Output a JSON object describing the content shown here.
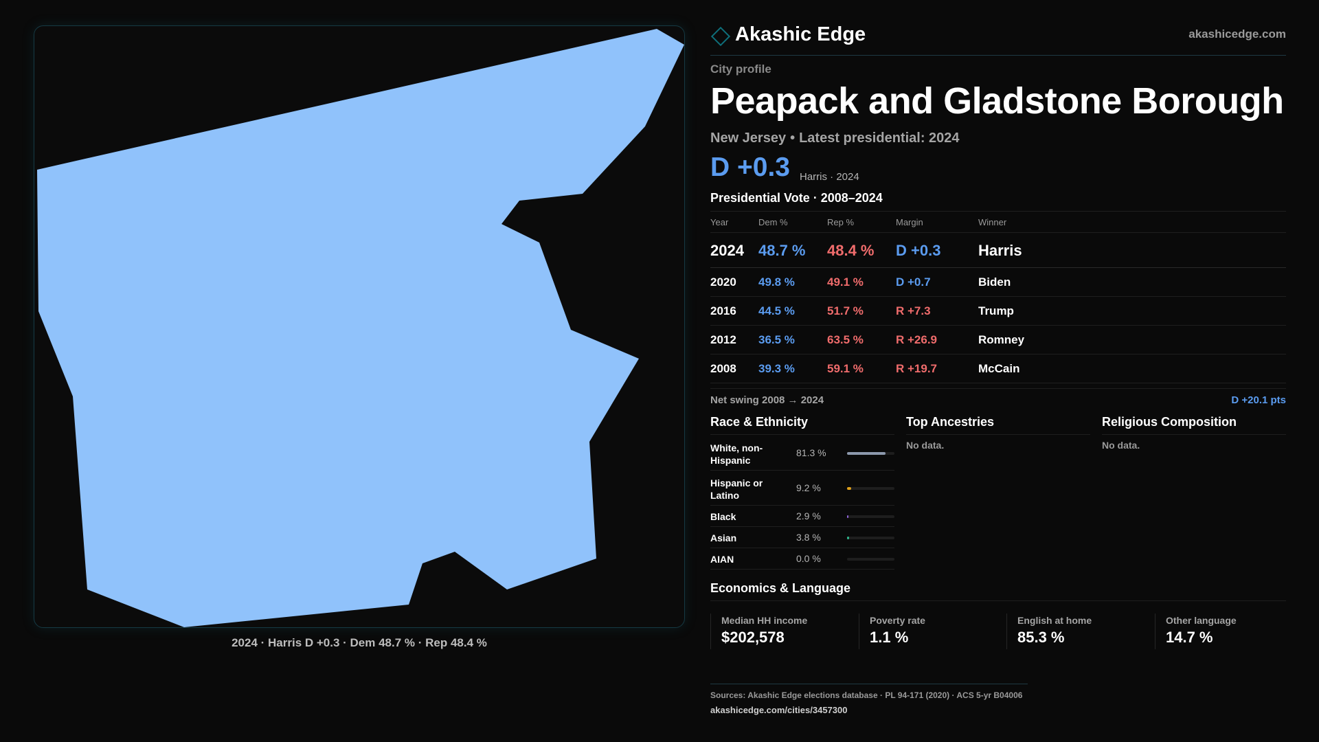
{
  "brand": {
    "name": "Akashic Edge",
    "url": "akashicedge.com",
    "accent": "#0e6f7a"
  },
  "profile": {
    "kicker": "City profile",
    "title": "Peapack and Gladstone Borough",
    "state": "New Jersey",
    "latest": "Latest presidential: 2024",
    "margin": "D +0.3",
    "margin_note": "Harris · 2024"
  },
  "map": {
    "fill": "#90c2fb",
    "caption": "2024 · Harris D +0.3 · Dem 48.7 % · Rep 48.4 %"
  },
  "vote": {
    "title": "Presidential Vote · 2008–2024",
    "headers": {
      "year": "Year",
      "dem": "Dem %",
      "rep": "Rep %",
      "margin": "Margin",
      "winner": "Winner"
    },
    "rows": [
      {
        "year": "2024",
        "dem": "48.7 %",
        "rep": "48.4 %",
        "margin": "D +0.3",
        "party": "D",
        "winner": "Harris"
      },
      {
        "year": "2020",
        "dem": "49.8 %",
        "rep": "49.1 %",
        "margin": "D +0.7",
        "party": "D",
        "winner": "Biden"
      },
      {
        "year": "2016",
        "dem": "44.5 %",
        "rep": "51.7 %",
        "margin": "R +7.3",
        "party": "R",
        "winner": "Trump"
      },
      {
        "year": "2012",
        "dem": "36.5 %",
        "rep": "63.5 %",
        "margin": "R +26.9",
        "party": "R",
        "winner": "Romney"
      },
      {
        "year": "2008",
        "dem": "39.3 %",
        "rep": "59.1 %",
        "margin": "R +19.7",
        "party": "R",
        "winner": "McCain"
      }
    ],
    "swing_label": "Net swing 2008 → 2024",
    "swing_value": "D +20.1 pts",
    "dem_color": "#5b9cf0",
    "rep_color": "#f06c6c"
  },
  "race": {
    "title": "Race & Ethnicity",
    "rows": [
      {
        "label": "White, non-Hispanic",
        "pct": "81.3 %",
        "value": 81.3,
        "color": "#8d99ad"
      },
      {
        "label": "Hispanic or Latino",
        "pct": "9.2 %",
        "value": 9.2,
        "color": "#e0a11b"
      },
      {
        "label": "Black",
        "pct": "2.9 %",
        "value": 2.9,
        "color": "#8e62d9"
      },
      {
        "label": "Asian",
        "pct": "3.8 %",
        "value": 3.8,
        "color": "#2fb38a"
      },
      {
        "label": "AIAN",
        "pct": "0.0 %",
        "value": 0.0,
        "color": "#c05050"
      }
    ]
  },
  "ancestries": {
    "title": "Top Ancestries",
    "empty": "No data."
  },
  "religion": {
    "title": "Religious Composition",
    "empty": "No data."
  },
  "economics": {
    "title": "Economics & Language",
    "items": [
      {
        "label": "Median HH income",
        "value": "$202,578"
      },
      {
        "label": "Poverty rate",
        "value": "1.1 %"
      },
      {
        "label": "English at home",
        "value": "85.3 %"
      },
      {
        "label": "Other language",
        "value": "14.7 %"
      }
    ]
  },
  "sources": {
    "text": "Sources: Akashic Edge elections database · PL 94-171 (2020) · ACS 5-yr B04006",
    "url": "akashicedge.com/cities/3457300"
  }
}
